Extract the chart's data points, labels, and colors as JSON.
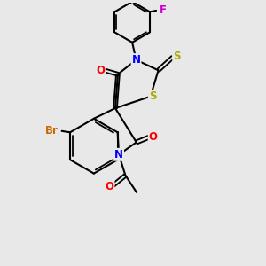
{
  "background_color": "#e8e8e8",
  "atom_colors": {
    "N": "#0000ff",
    "O": "#ff0000",
    "S": "#aaaa00",
    "Br": "#cc6600",
    "F": "#cc00cc"
  },
  "figsize": [
    3.0,
    3.0
  ],
  "dpi": 100
}
